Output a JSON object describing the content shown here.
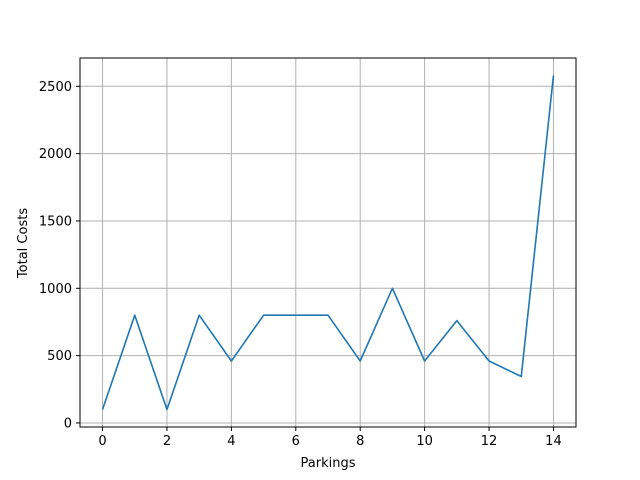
{
  "chart_data": {
    "type": "line",
    "title": "",
    "xlabel": "Parkings",
    "ylabel": "Total Costs",
    "xlim": [
      -0.7,
      14.7
    ],
    "ylim": [
      -30,
      2710
    ],
    "xticks": [
      0,
      2,
      4,
      6,
      8,
      10,
      12,
      14
    ],
    "yticks": [
      0,
      500,
      1000,
      1500,
      2000,
      2500
    ],
    "grid": true,
    "colors": {
      "line": "#1f77b4",
      "grid": "#b0b0b0",
      "axes": "#000000"
    },
    "series": [
      {
        "x": [
          0,
          1,
          2,
          3,
          4,
          5,
          6,
          7,
          8,
          9,
          10,
          11,
          12,
          13,
          14
        ],
        "values": [
          100,
          800,
          100,
          800,
          460,
          800,
          800,
          800,
          460,
          1000,
          460,
          760,
          460,
          345,
          2580
        ]
      }
    ]
  }
}
